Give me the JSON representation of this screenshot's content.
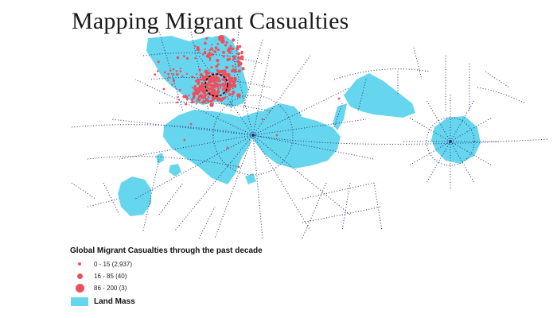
{
  "map": {
    "title": "Mapping Migrant Casualties",
    "colors": {
      "land": "#66d6ee",
      "casualty": "#ef4f5c",
      "graticule": "#2c2f6e",
      "highlight_ring": "#111111"
    },
    "legend": {
      "title": "Global Migrant Casualties through the past decade",
      "items": [
        {
          "label": "0 - 15 (2,937)",
          "symbol": "small-dot"
        },
        {
          "label": "16 - 85 (40)",
          "symbol": "medium-dot"
        },
        {
          "label": "86 - 200 (3)",
          "symbol": "large-dot"
        },
        {
          "label": "Land Mass",
          "symbol": "land-swatch"
        }
      ]
    }
  }
}
